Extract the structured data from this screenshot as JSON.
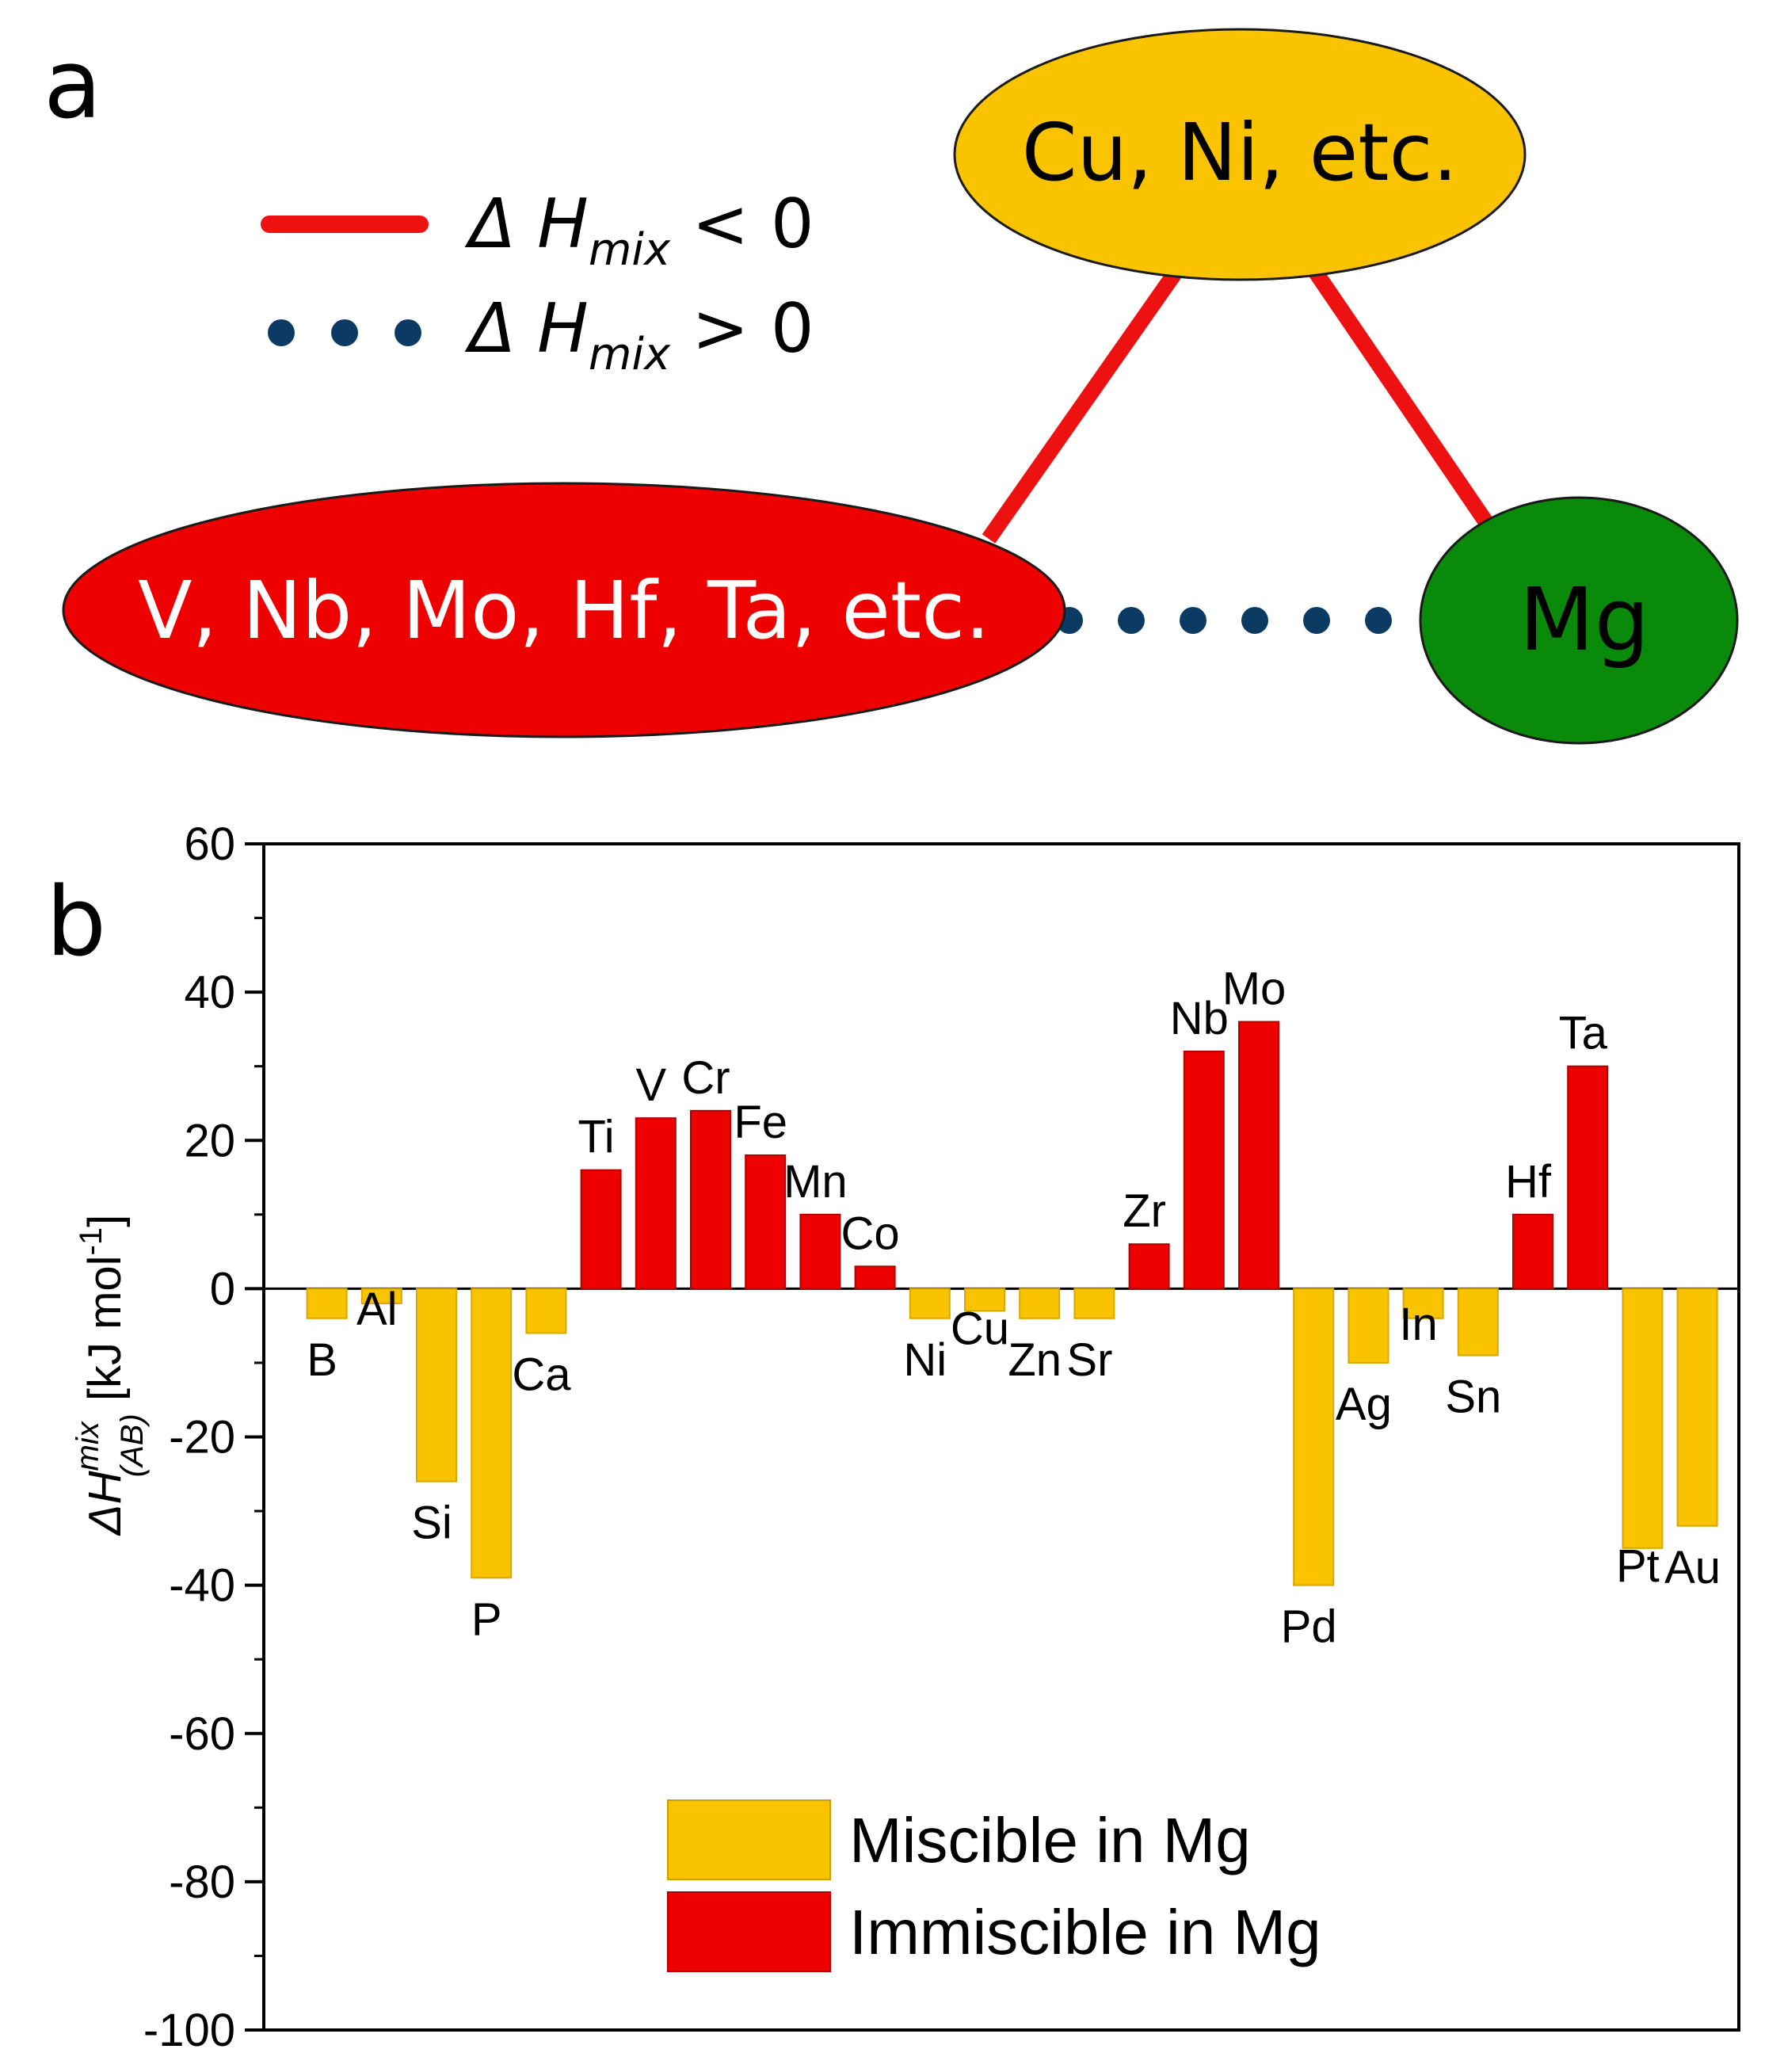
{
  "panel_a": {
    "label": "a",
    "legend": {
      "negative": {
        "prefix": "Δ H",
        "subscript": "mix",
        "suffix": " < 0"
      },
      "positive": {
        "prefix": "Δ H",
        "subscript": "mix",
        "suffix": " > 0"
      }
    },
    "nodes": {
      "top": "Cu, Ni, etc.",
      "left": "V, Nb, Mo, Hf, Ta, etc.",
      "right": "Mg"
    },
    "colors": {
      "top_fill": "#F9C300",
      "left_fill": "#EE0000",
      "right_fill": "#0A8A0A",
      "negative_line": "#EE1111",
      "positive_dots": "#0B3B63"
    }
  },
  "panel_b": {
    "label": "b",
    "ylabel": {
      "delta": "ΔH",
      "sup": "mix",
      "sub": "(AB)",
      "unit_prefix": " [kJ mol",
      "unit_exp": "-1",
      "unit_suffix": "]"
    }
  },
  "chart_data": {
    "type": "bar",
    "title": "",
    "xlabel": "",
    "ylabel": "ΔH mix (AB) [kJ mol-1]",
    "ylim": [
      -100,
      60
    ],
    "yticks": [
      60,
      40,
      20,
      0,
      -20,
      -40,
      -60,
      -80,
      -100
    ],
    "categories": [
      "B",
      "Al",
      "Si",
      "P",
      "Ca",
      "Ti",
      "V",
      "Cr",
      "Fe",
      "Mn",
      "Co",
      "Ni",
      "Cu",
      "Zn",
      "Sr",
      "Zr",
      "Nb",
      "Mo",
      "Pd",
      "Ag",
      "In",
      "Sn",
      "Hf",
      "Ta",
      "Pt",
      "Au"
    ],
    "values": [
      -4,
      -2,
      -26,
      -39,
      -6,
      16,
      23,
      24,
      18,
      10,
      3,
      -4,
      -3,
      -4,
      -4,
      6,
      32,
      36,
      -40,
      -10,
      -4,
      -9,
      10,
      30,
      -35,
      -32
    ],
    "groups": [
      "miscible",
      "miscible",
      "miscible",
      "miscible",
      "miscible",
      "immiscible",
      "immiscible",
      "immiscible",
      "immiscible",
      "immiscible",
      "immiscible",
      "miscible",
      "miscible",
      "miscible",
      "miscible",
      "immiscible",
      "immiscible",
      "immiscible",
      "miscible",
      "miscible",
      "miscible",
      "miscible",
      "immiscible",
      "immiscible",
      "miscible",
      "miscible"
    ],
    "legend": {
      "position": "bottom-center",
      "items": [
        {
          "key": "miscible",
          "label": "Miscible in Mg",
          "color": "#F9C300"
        },
        {
          "key": "immiscible",
          "label": "Immiscible in Mg",
          "color": "#EE0000"
        }
      ]
    }
  }
}
